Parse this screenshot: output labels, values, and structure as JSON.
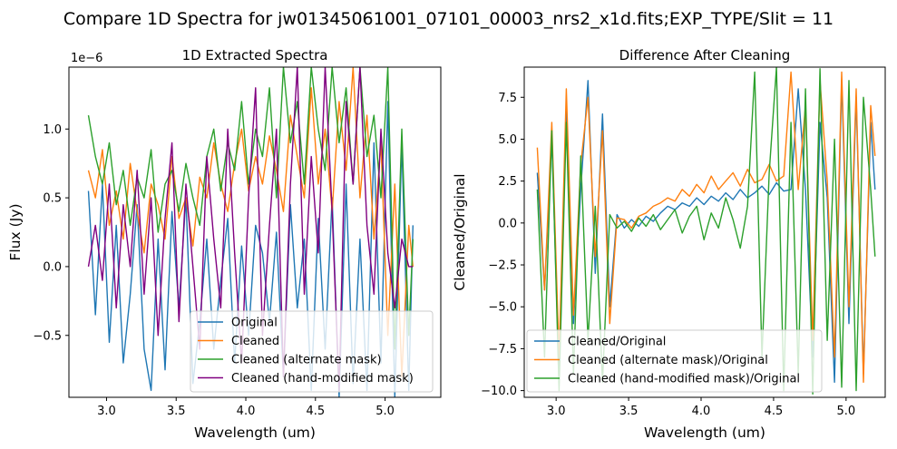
{
  "figure": {
    "suptitle": "Compare 1D Spectra for jw01345061001_07101_00003_nrs2_x1d.fits;EXP_TYPE/Slit = 11"
  },
  "chart_data": [
    {
      "type": "line",
      "title": "1D Extracted Spectra",
      "xlabel": "Wavelength (um)",
      "ylabel": "Flux (Jy)",
      "offset_text": "1e−6",
      "xlim": [
        2.73,
        5.4
      ],
      "ylim": [
        -0.95,
        1.45
      ],
      "xticks": [
        3.0,
        3.5,
        4.0,
        4.5,
        5.0
      ],
      "xtick_labels": [
        "3.0",
        "3.5",
        "4.0",
        "4.5",
        "5.0"
      ],
      "yticks": [
        -0.5,
        0.0,
        0.5,
        1.0
      ],
      "ytick_labels": [
        "−0.5",
        "0.0",
        "0.5",
        "1.0"
      ],
      "grid": false,
      "legend_position": "lower-right",
      "x": [
        2.87,
        2.92,
        2.97,
        3.02,
        3.07,
        3.12,
        3.17,
        3.22,
        3.27,
        3.32,
        3.37,
        3.42,
        3.47,
        3.52,
        3.57,
        3.62,
        3.67,
        3.72,
        3.77,
        3.82,
        3.87,
        3.92,
        3.97,
        4.02,
        4.07,
        4.12,
        4.17,
        4.22,
        4.27,
        4.32,
        4.37,
        4.42,
        4.47,
        4.52,
        4.57,
        4.62,
        4.67,
        4.72,
        4.77,
        4.82,
        4.87,
        4.92,
        4.97,
        5.02,
        5.07,
        5.12,
        5.17,
        5.2
      ],
      "series": [
        {
          "name": "Original",
          "color": "#1f77b4",
          "values": [
            0.55,
            -0.35,
            0.6,
            -0.55,
            0.3,
            -0.7,
            -0.2,
            0.45,
            -0.6,
            -0.9,
            0.2,
            -0.75,
            0.4,
            -0.3,
            0.5,
            -0.85,
            -0.4,
            0.2,
            -0.6,
            -0.1,
            0.35,
            -0.7,
            0.15,
            -0.5,
            0.3,
            0.1,
            -0.4,
            0.25,
            -0.8,
            0.45,
            -0.3,
            0.2,
            -0.9,
            0.35,
            -0.6,
            0.5,
            -0.95,
            0.6,
            -0.85,
            0.2,
            -0.9,
            0.9,
            -0.7,
            1.2,
            -0.95,
            0.9,
            -0.9,
            0.3
          ]
        },
        {
          "name": "Cleaned",
          "color": "#ff7f0e",
          "values": [
            0.7,
            0.5,
            0.85,
            0.3,
            0.55,
            0.2,
            0.75,
            0.4,
            0.1,
            0.6,
            0.45,
            0.2,
            0.8,
            0.35,
            0.5,
            0.15,
            0.65,
            0.5,
            0.9,
            0.6,
            0.4,
            0.75,
            1.0,
            0.55,
            0.8,
            0.6,
            0.95,
            0.7,
            0.4,
            1.1,
            0.8,
            0.5,
            1.3,
            0.6,
            1.0,
            0.4,
            1.2,
            0.7,
            1.45,
            0.5,
            1.1,
            0.2,
            0.9,
            -0.5,
            0.6,
            -0.8,
            0.3,
            0.0
          ]
        },
        {
          "name": "Cleaned (alternate mask)",
          "color": "#2ca02c",
          "values": [
            1.1,
            0.8,
            0.6,
            0.9,
            0.45,
            0.7,
            0.3,
            0.65,
            0.5,
            0.85,
            0.25,
            0.6,
            0.7,
            0.4,
            0.75,
            0.5,
            0.3,
            0.8,
            1.0,
            0.55,
            0.9,
            0.7,
            1.2,
            0.6,
            1.0,
            0.8,
            1.3,
            0.5,
            1.45,
            0.9,
            1.2,
            0.6,
            1.45,
            1.0,
            0.7,
            1.45,
            0.9,
            1.3,
            0.6,
            1.45,
            0.8,
            1.1,
            0.5,
            1.45,
            -0.6,
            1.0,
            -0.5,
            0.2
          ]
        },
        {
          "name": "Cleaned (hand-modified mask)",
          "color": "#800080",
          "values": [
            0.0,
            0.3,
            -0.1,
            0.6,
            -0.3,
            0.45,
            0.0,
            0.7,
            -0.2,
            0.5,
            -0.5,
            0.35,
            0.9,
            -0.4,
            0.6,
            0.0,
            -0.6,
            0.8,
            0.2,
            -0.3,
            1.0,
            0.1,
            -0.7,
            0.5,
            1.3,
            -0.5,
            0.3,
            1.0,
            -0.8,
            0.6,
            1.45,
            -0.2,
            0.8,
            0.1,
            1.45,
            0.4,
            -0.9,
            1.2,
            0.6,
            1.45,
            0.3,
            -0.2,
            1.0,
            0.1,
            -0.3,
            0.2,
            0.0,
            0.0
          ]
        }
      ]
    },
    {
      "type": "line",
      "title": "Difference After Cleaning",
      "xlabel": "Wavelength (um)",
      "ylabel": "Cleaned/Original",
      "xlim": [
        2.78,
        5.27
      ],
      "ylim": [
        -10.4,
        9.3
      ],
      "xticks": [
        3.0,
        3.5,
        4.0,
        4.5,
        5.0
      ],
      "xtick_labels": [
        "3.0",
        "3.5",
        "4.0",
        "4.5",
        "5.0"
      ],
      "yticks": [
        -10.0,
        -7.5,
        -5.0,
        -2.5,
        0.0,
        2.5,
        5.0,
        7.5
      ],
      "ytick_labels": [
        "−10.0",
        "−7.5",
        "−5.0",
        "−2.5",
        "0.0",
        "2.5",
        "5.0",
        "7.5"
      ],
      "grid": false,
      "legend_position": "lower-left",
      "x": [
        2.87,
        2.92,
        2.97,
        3.02,
        3.07,
        3.12,
        3.17,
        3.22,
        3.27,
        3.32,
        3.37,
        3.42,
        3.47,
        3.52,
        3.57,
        3.62,
        3.67,
        3.72,
        3.77,
        3.82,
        3.87,
        3.92,
        3.97,
        4.02,
        4.07,
        4.12,
        4.17,
        4.22,
        4.27,
        4.32,
        4.37,
        4.42,
        4.47,
        4.52,
        4.57,
        4.62,
        4.67,
        4.72,
        4.77,
        4.82,
        4.87,
        4.92,
        4.97,
        5.02,
        5.07,
        5.12,
        5.17,
        5.2
      ],
      "series": [
        {
          "name": "Cleaned/Original",
          "color": "#1f77b4",
          "values": [
            3.0,
            -4.0,
            5.0,
            -9.0,
            7.0,
            -6.0,
            2.0,
            8.5,
            -3.0,
            6.5,
            -5.0,
            0.5,
            -0.3,
            0.2,
            -0.2,
            0.4,
            0.1,
            0.6,
            1.0,
            0.8,
            1.2,
            1.0,
            1.5,
            1.1,
            1.6,
            1.3,
            1.8,
            1.4,
            2.0,
            1.5,
            1.8,
            2.2,
            1.7,
            2.4,
            1.9,
            2.0,
            8.0,
            2.0,
            -8.0,
            6.0,
            1.5,
            -9.5,
            8.5,
            -6.0,
            7.5,
            -9.0,
            6.0,
            2.0
          ]
        },
        {
          "name": "Cleaned (alternate mask)/Original",
          "color": "#ff7f0e",
          "values": [
            4.5,
            -4.0,
            6.0,
            -8.0,
            8.0,
            -5.5,
            3.5,
            7.5,
            -2.0,
            5.5,
            -6.0,
            0.3,
            0.2,
            -0.3,
            0.4,
            0.6,
            1.0,
            1.2,
            1.5,
            1.3,
            2.0,
            1.6,
            2.3,
            1.8,
            2.8,
            2.0,
            2.5,
            3.0,
            2.2,
            3.2,
            2.4,
            2.6,
            3.5,
            2.5,
            2.8,
            9.0,
            2.0,
            7.0,
            -7.0,
            8.5,
            2.5,
            -8.0,
            9.0,
            -5.0,
            8.0,
            -9.5,
            7.0,
            4.0
          ]
        },
        {
          "name": "Cleaned (hand-modified mask)/Original",
          "color": "#2ca02c",
          "values": [
            2.0,
            -8.0,
            5.5,
            -10.0,
            6.0,
            -9.0,
            4.0,
            -7.0,
            1.0,
            -9.5,
            0.5,
            -0.3,
            0.1,
            -0.5,
            0.3,
            -0.2,
            0.5,
            -0.4,
            0.2,
            0.8,
            -0.6,
            0.4,
            1.0,
            -1.0,
            0.6,
            -0.3,
            1.5,
            0.2,
            -1.5,
            1.0,
            9.0,
            -8.0,
            3.0,
            9.3,
            -10.0,
            6.0,
            -9.0,
            8.0,
            -10.2,
            9.2,
            -7.0,
            5.0,
            -9.8,
            8.5,
            -10.0,
            7.5,
            2.0,
            -2.0
          ]
        }
      ]
    }
  ]
}
